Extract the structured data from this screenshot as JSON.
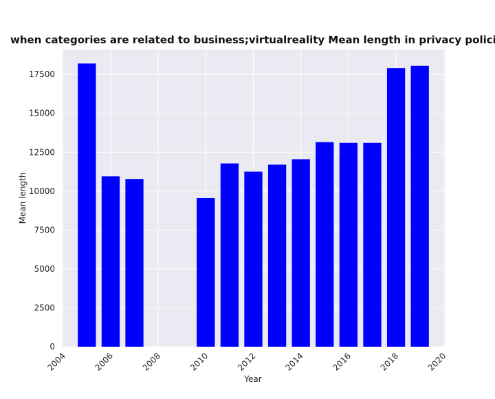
{
  "chart_data": {
    "type": "bar",
    "title": "when categories are related to business;virtualreality Mean length in privacy policies by Year",
    "xlabel": "Year",
    "ylabel": "Mean length",
    "x": [
      2005,
      2006,
      2007,
      2010,
      2011,
      2012,
      2013,
      2014,
      2015,
      2016,
      2017,
      2018,
      2019
    ],
    "values": [
      18200,
      10950,
      10780,
      9550,
      11780,
      11250,
      11700,
      12050,
      13150,
      13100,
      13100,
      17900,
      18050
    ],
    "xlim": [
      2003.95,
      2020.05
    ],
    "ylim": [
      0,
      19100
    ],
    "xticks": [
      2004,
      2006,
      2008,
      2010,
      2012,
      2014,
      2016,
      2018,
      2020
    ],
    "yticks": [
      0,
      2500,
      5000,
      7500,
      10000,
      12500,
      15000,
      17500
    ],
    "bar_color": "#0000ff",
    "plot_background": "#eaeaf2",
    "grid": true,
    "grid_color": "#ffffff"
  }
}
